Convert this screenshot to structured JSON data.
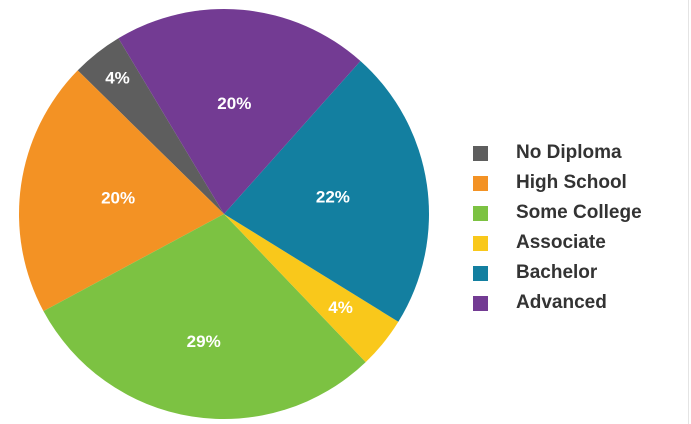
{
  "chart_data": {
    "type": "pie",
    "title": "",
    "categories": [
      "No Diploma",
      "High School",
      "Some College",
      "Associate",
      "Bachelor",
      "Advanced"
    ],
    "values": [
      4,
      20,
      29,
      4,
      22,
      20
    ],
    "labels": [
      "4%",
      "20%",
      "29%",
      "4%",
      "22%",
      "20%"
    ],
    "colors": [
      "#5e5e5e",
      "#f39224",
      "#7cc242",
      "#f9c81b",
      "#137fa0",
      "#733b93"
    ],
    "start_angle_deg": 121,
    "direction": "counterclockwise",
    "legend_position": "right"
  }
}
